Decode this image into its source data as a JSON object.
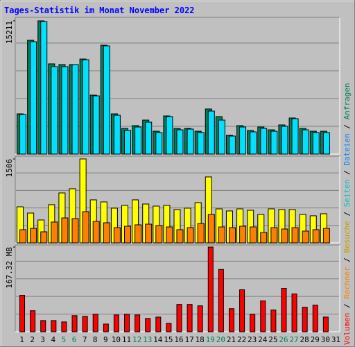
{
  "title": "Tages-Statistik im Monat November 2022",
  "categories": [
    "1",
    "2",
    "3",
    "4",
    "5",
    "6",
    "7",
    "8",
    "9",
    "10",
    "11",
    "12",
    "13",
    "14",
    "15",
    "16",
    "17",
    "18",
    "19",
    "20",
    "21",
    "22",
    "23",
    "24",
    "25",
    "26",
    "27",
    "28",
    "29",
    "30",
    "31"
  ],
  "category_colors": [
    "#000000",
    "#000000",
    "#000000",
    "#000000",
    "#00805c",
    "#00805c",
    "#000000",
    "#000000",
    "#000000",
    "#000000",
    "#000000",
    "#00805c",
    "#00805c",
    "#000000",
    "#000000",
    "#000000",
    "#000000",
    "#000000",
    "#00805c",
    "#00805c",
    "#000000",
    "#000000",
    "#000000",
    "#000000",
    "#000000",
    "#00805c",
    "#00805c",
    "#000000",
    "#000000",
    "#000000",
    "#000000"
  ],
  "legend_separator": " / ",
  "legend_extra": {
    "name": "Seiten",
    "color": "#00c0c0"
  },
  "chart_data": [
    {
      "type": "bar",
      "ylim": [
        0,
        15211
      ],
      "yticks": [
        15211
      ],
      "series": [
        {
          "name": "Anfragen",
          "color": "#00805c",
          "values": [
            4594,
            12990,
            15211,
            10300,
            10220,
            10220,
            10850,
            6730,
            12430,
            4594,
            2930,
            3250,
            3880,
            2610,
            4355,
            2930,
            2930,
            2610,
            5150,
            4277,
            2138,
            3250,
            2690,
            3090,
            2770,
            3330,
            4120,
            2930,
            2610,
            2610,
            null
          ]
        },
        {
          "name": "Dateien",
          "color": "#00e0ff",
          "values": [
            4515,
            12830,
            15130,
            9980,
            9980,
            10220,
            10770,
            6650,
            12350,
            4435,
            2690,
            3090,
            3640,
            2455,
            4277,
            2770,
            2850,
            2455,
            4910,
            3880,
            2060,
            3090,
            2534,
            2930,
            2610,
            3170,
            4040,
            2770,
            2455,
            2455,
            null
          ]
        }
      ]
    },
    {
      "type": "bar",
      "ylim": [
        0,
        1506
      ],
      "yticks": [
        1506
      ],
      "series": [
        {
          "name": "Besuche",
          "color": "#ffff00",
          "values": [
            647,
            535,
            411,
            685,
            896,
            971,
            1506,
            772,
            735,
            623,
            672,
            772,
            697,
            660,
            672,
            598,
            623,
            722,
            1183,
            610,
            573,
            610,
            585,
            510,
            610,
            598,
            598,
            510,
            486,
            523,
            null
          ]
        },
        {
          "name": "Rechner",
          "color": "#ff8000",
          "values": [
            237,
            261,
            199,
            374,
            448,
            436,
            560,
            386,
            361,
            274,
            299,
            324,
            336,
            311,
            286,
            237,
            274,
            349,
            510,
            286,
            274,
            299,
            286,
            187,
            274,
            249,
            274,
            212,
            237,
            261,
            null
          ]
        }
      ]
    },
    {
      "type": "bar",
      "ylim": [
        0,
        167.32
      ],
      "yticks": [
        {
          "value": 167.32,
          "label": "167.32 MB"
        }
      ],
      "series": [
        {
          "name": "Volumen",
          "color": "#ff0000",
          "values": [
            71.9,
            41.5,
            22.1,
            22.1,
            19.4,
            31.8,
            30.4,
            34.6,
            15.2,
            33.2,
            34.6,
            33.2,
            26.3,
            29.0,
            16.6,
            53.9,
            53.9,
            51.2,
            167.32,
            123.1,
            45.6,
            83.0,
            34.6,
            60.9,
            42.9,
            85.7,
            74.7,
            48.4,
            52.6,
            29.0,
            null
          ]
        }
      ]
    }
  ]
}
